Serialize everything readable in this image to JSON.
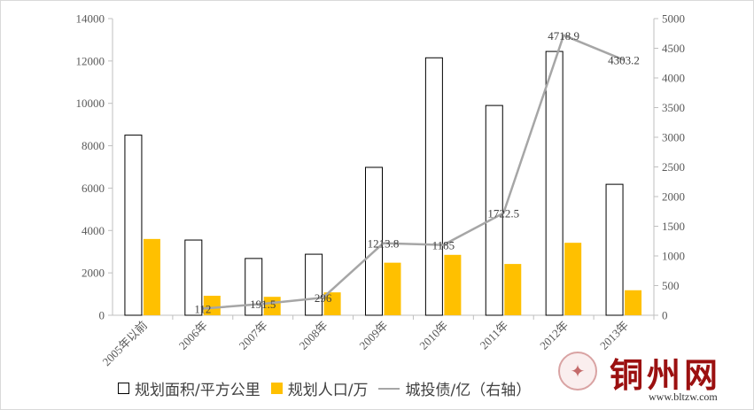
{
  "chart_data": {
    "type": "bar+line",
    "categories": [
      "2005年以前",
      "2006年",
      "2007年",
      "2008年",
      "2009年",
      "2010年",
      "2011年",
      "2012年",
      "2013年"
    ],
    "series": [
      {
        "name": "规划面积/平方公里",
        "type": "bar",
        "axis": "left",
        "color": "#ffffff",
        "stroke": "#000000",
        "values": [
          8500,
          3550,
          2680,
          2880,
          6980,
          12150,
          9900,
          12450,
          6180
        ]
      },
      {
        "name": "规划人口/万",
        "type": "bar",
        "axis": "left",
        "color": "#ffc000",
        "values": [
          3600,
          920,
          870,
          1080,
          2480,
          2850,
          2420,
          3420,
          1180
        ]
      },
      {
        "name": "城投债/亿（右轴）",
        "type": "line",
        "axis": "right",
        "color": "#a6a6a6",
        "values": [
          null,
          112,
          191.5,
          296,
          1213.8,
          1185,
          1722.5,
          4718.9,
          4303.2
        ],
        "labels": [
          "",
          "112",
          "191.5",
          "296",
          "1213.8",
          "1185",
          "1722.5",
          "4718.9",
          "4303.2"
        ]
      }
    ],
    "y_left": {
      "min": 0,
      "max": 14000,
      "step": 2000,
      "ticks": [
        "0",
        "2000",
        "4000",
        "6000",
        "8000",
        "10000",
        "12000",
        "14000"
      ]
    },
    "y_right": {
      "min": 0,
      "max": 5000,
      "step": 500,
      "ticks": [
        "0",
        "500",
        "1000",
        "1500",
        "2000",
        "2500",
        "3000",
        "3500",
        "4000",
        "4500",
        "5000"
      ]
    },
    "grid": false,
    "legend_position": "bottom"
  },
  "legend": {
    "area_label": "规划面积/平方公里",
    "pop_label": "规划人口/万",
    "debt_label": "城投债/亿（右轴）"
  },
  "watermark": {
    "title": "铜州网",
    "url": "www.bltzw.com",
    "seal_glyph": "✦"
  }
}
